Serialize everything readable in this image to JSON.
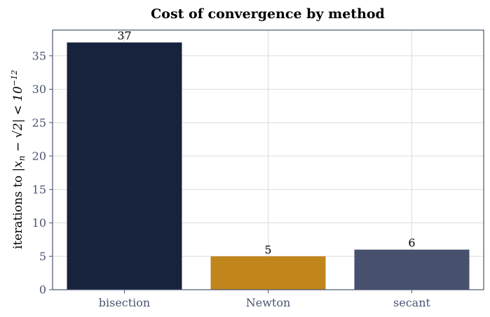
{
  "chart_data": {
    "type": "bar",
    "title": "Cost of convergence by method",
    "xlabel": "",
    "ylabel": {
      "prefix": "iterations to ",
      "math": "|x",
      "math_sub": "n",
      "math_mid": " − √2| < 10",
      "math_sup": "−12"
    },
    "categories": [
      "bisection",
      "Newton",
      "secant"
    ],
    "values": [
      37,
      5,
      6
    ],
    "colors": [
      "#17223d",
      "#c0861c",
      "#47516e"
    ],
    "ylim": [
      0,
      38.85
    ],
    "yticks": [
      0,
      5,
      10,
      15,
      20,
      25,
      30,
      35
    ],
    "grid": true,
    "axis_color": "#4a5473",
    "grid_color": "#dcdcdc"
  }
}
